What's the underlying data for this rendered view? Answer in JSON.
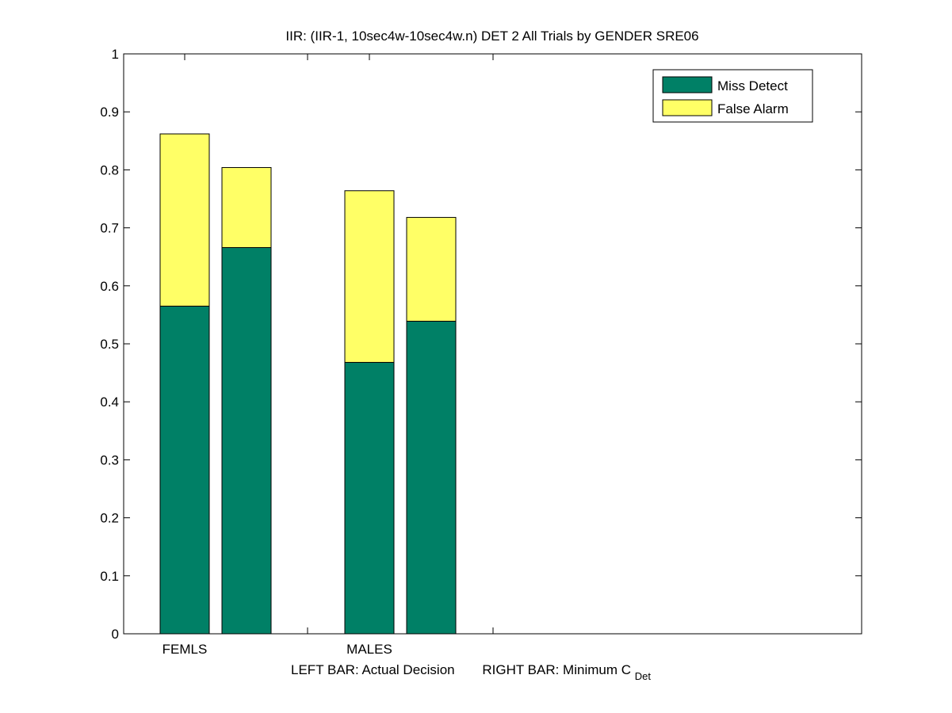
{
  "chart_data": {
    "type": "bar",
    "stacked": true,
    "title": "IIR: (IIR-1, 10sec4w-10sec4w.n) DET 2 All Trials by GENDER SRE06",
    "xlabel": {
      "left": "LEFT BAR: Actual Decision",
      "right": "RIGHT BAR: Minimum C",
      "right_subscript": "Det"
    },
    "ylabel": "",
    "ylim": [
      0,
      1
    ],
    "yticks": [
      "0",
      "0.1",
      "0.2",
      "0.3",
      "0.4",
      "0.5",
      "0.6",
      "0.7",
      "0.8",
      "0.9",
      "1"
    ],
    "categories": [
      "FEMLS",
      "MALES"
    ],
    "legend_position": "top-right",
    "series": [
      {
        "name": "Miss Detect",
        "color": "#008066",
        "actual": [
          0.565,
          0.468
        ],
        "minimum": [
          0.666,
          0.539
        ]
      },
      {
        "name": "False Alarm",
        "color": "#ffff66",
        "actual": [
          0.297,
          0.296
        ],
        "minimum": [
          0.138,
          0.179
        ]
      }
    ]
  }
}
